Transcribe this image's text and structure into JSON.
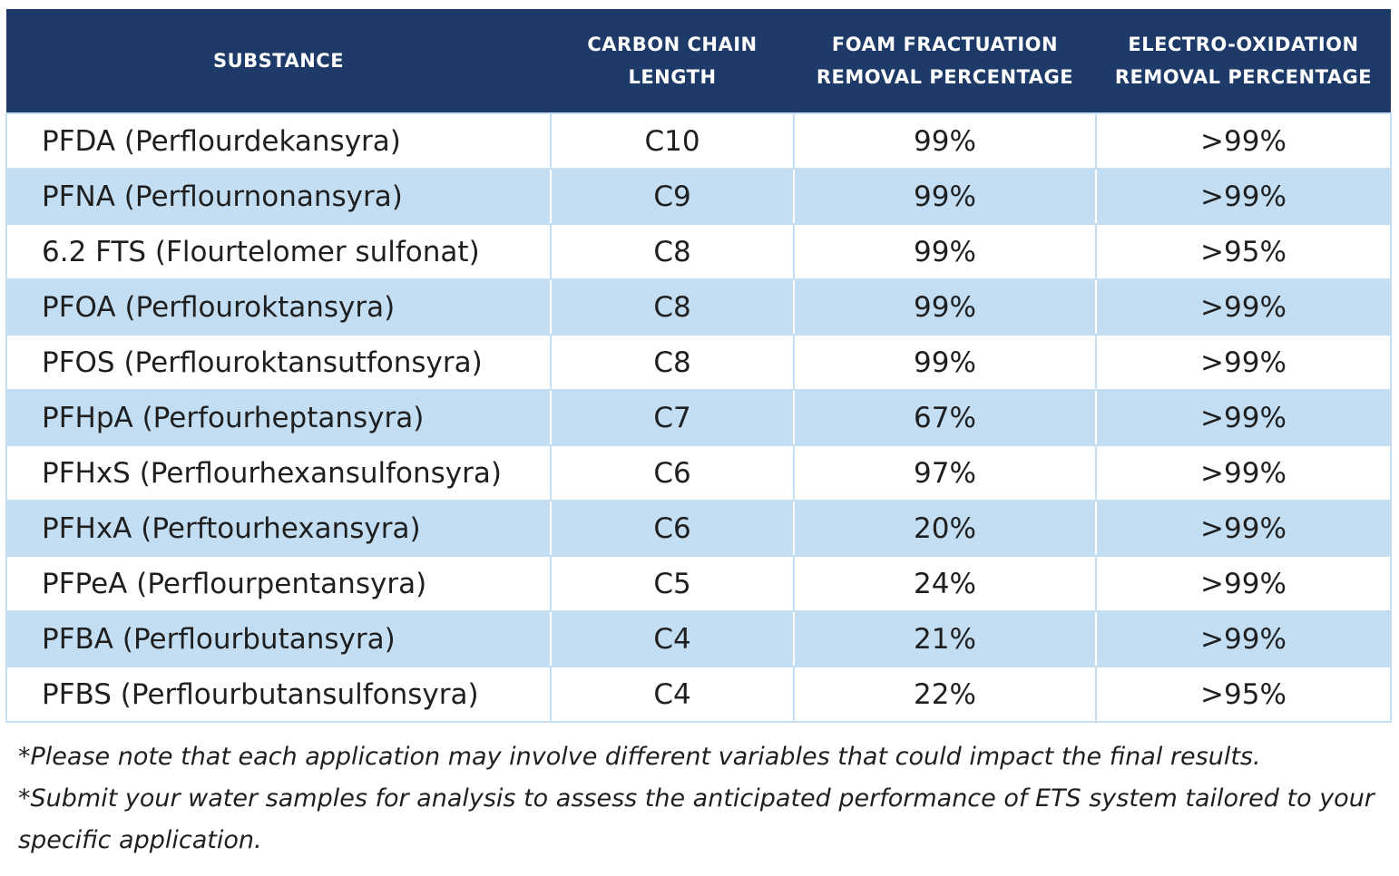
{
  "table": {
    "headers": [
      [
        "SUBSTANCE"
      ],
      [
        "CARBON CHAIN",
        "LENGTH"
      ],
      [
        "FOAM FRACTUATION",
        "REMOVAL PERCENTAGE"
      ],
      [
        "ELECTRO-OXIDATION",
        "REMOVAL PERCENTAGE"
      ]
    ],
    "rows": [
      [
        "PFDA (Perflourdekansyra)",
        "C10",
        "99%",
        ">99%"
      ],
      [
        "PFNA (Perflournonansyra)",
        "C9",
        "99%",
        ">99%"
      ],
      [
        "6.2 FTS (Flourtelomer sulfonat)",
        "C8",
        "99%",
        ">95%"
      ],
      [
        "PFOA (Perflouroktansyra)",
        "C8",
        "99%",
        ">99%"
      ],
      [
        "PFOS (Perflouroktansutfonsyra)",
        "C8",
        "99%",
        ">99%"
      ],
      [
        "PFHpA (Perfourheptansyra)",
        "C7",
        "67%",
        ">99%"
      ],
      [
        "PFHxS (Perflourhexansulfonsyra)",
        "C6",
        "97%",
        ">99%"
      ],
      [
        "PFHxA (Perftourhexansyra)",
        "C6",
        "20%",
        ">99%"
      ],
      [
        "PFPeA (Perflourpentansyra)",
        "C5",
        "24%",
        ">99%"
      ],
      [
        "PFBA (Perflourbutansyra)",
        "C4",
        "21%",
        ">99%"
      ],
      [
        "PFBS (Perflourbutansulfonsyra)",
        "C4",
        "22%",
        ">95%"
      ]
    ]
  },
  "notes": [
    "*Please note that each application may involve different variables that could impact the final results.",
    "*Submit your water samples for analysis to assess the anticipated performance of ETS system tailored to your specific application."
  ],
  "colors": {
    "header_bg": "#1d3a69",
    "stripe_bg": "#c3def3",
    "border": "#c7dff2"
  }
}
